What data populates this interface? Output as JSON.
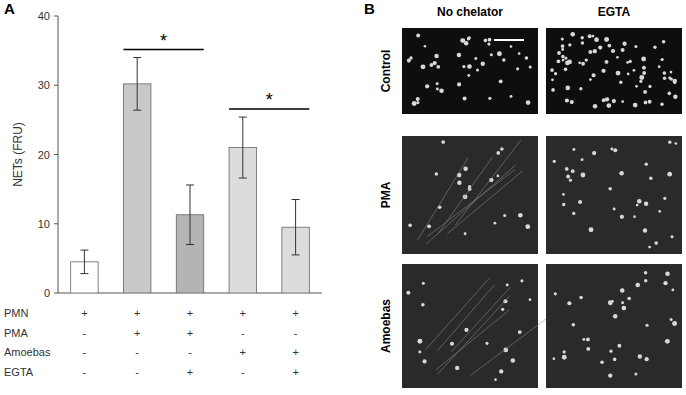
{
  "chart_data": {
    "type": "bar",
    "title": "A",
    "ylabel": "NETs (FRU)",
    "categories": [
      null,
      null,
      null,
      null,
      null
    ],
    "values": [
      4.5,
      30.2,
      11.3,
      21.0,
      9.5
    ],
    "errors": [
      1.7,
      3.8,
      4.3,
      4.4,
      4.0
    ],
    "colors": [
      "#ffffff",
      "#c8c8c8",
      "#b4b4b4",
      "#dcdcdc",
      "#dcdcdc"
    ],
    "ylim": [
      0,
      40
    ],
    "yticks": [
      0,
      10,
      20,
      30,
      40
    ],
    "grid": false,
    "conditions": [
      {
        "name": "PMN",
        "values": [
          "+",
          "+",
          "+",
          "+",
          "+"
        ]
      },
      {
        "name": "PMA",
        "values": [
          "-",
          "+",
          "+",
          "-",
          "-"
        ]
      },
      {
        "name": "Amoebas",
        "values": [
          "-",
          "-",
          "-",
          "+",
          "+"
        ]
      },
      {
        "name": "EGTA",
        "values": [
          "-",
          "-",
          "+",
          "-",
          "+"
        ]
      }
    ],
    "significance": [
      {
        "label": "*",
        "between": [
          1,
          2
        ]
      },
      {
        "label": "*",
        "between": [
          3,
          4
        ]
      }
    ]
  },
  "panel_b": {
    "label": "B",
    "columns": [
      "No chelator",
      "EGTA"
    ],
    "rows": [
      "Control",
      "PMA",
      "Amoebas"
    ]
  }
}
